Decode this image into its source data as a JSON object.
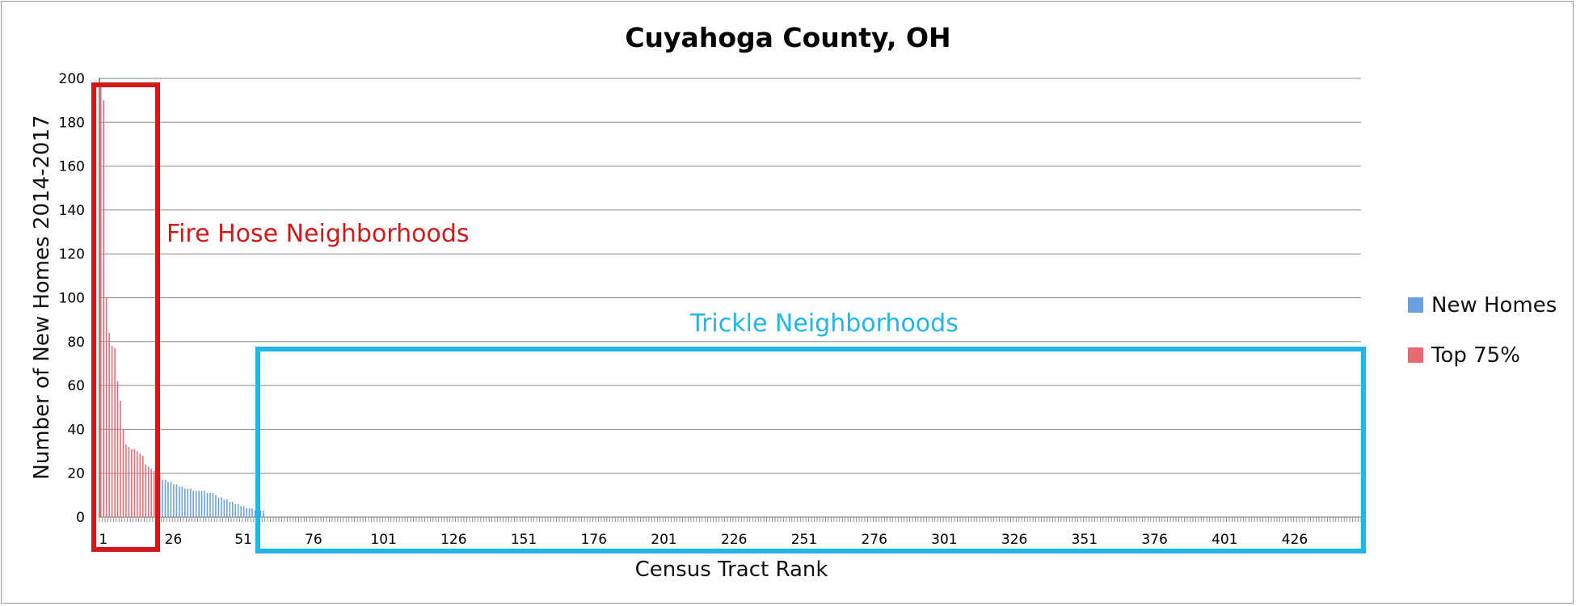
{
  "chart_data": {
    "type": "bar",
    "title": "Cuyahoga County, OH",
    "xlabel": "Census Tract Rank",
    "ylabel": "Number of New Homes 2014-2017",
    "ylim": [
      0,
      200
    ],
    "yticks": [
      "0",
      "20",
      "40",
      "60",
      "80",
      "100",
      "120",
      "140",
      "160",
      "180",
      "200"
    ],
    "xticks": [
      "1",
      "26",
      "51",
      "76",
      "101",
      "126",
      "151",
      "176",
      "201",
      "226",
      "251",
      "276",
      "301",
      "326",
      "351",
      "376",
      "401",
      "426"
    ],
    "x_count": 450,
    "grid": true,
    "legend_position": "right",
    "series": [
      {
        "name": "New Homes",
        "color": "#6a9fe0",
        "start_rank": 23,
        "values": [
          17,
          17,
          16,
          16,
          15,
          15,
          14,
          14,
          13,
          13,
          13,
          12,
          12,
          12,
          12,
          12,
          11,
          11,
          11,
          10,
          9,
          9,
          8,
          8,
          7,
          7,
          6,
          6,
          5,
          5,
          4,
          4,
          4,
          3,
          3,
          3,
          3
        ]
      },
      {
        "name": "Top 75%",
        "color": "#e86a73",
        "start_rank": 1,
        "values": [
          196,
          190,
          100,
          84,
          78,
          77,
          62,
          53,
          40,
          33,
          32,
          31,
          31,
          30,
          29,
          28,
          24,
          23,
          22,
          21,
          21,
          20
        ]
      }
    ],
    "annotations": [
      {
        "text": "Fire Hose Neighborhoods",
        "color": "#d01a1a"
      },
      {
        "text": "Trickle Neighborhoods",
        "color": "#21b5ea"
      }
    ]
  }
}
